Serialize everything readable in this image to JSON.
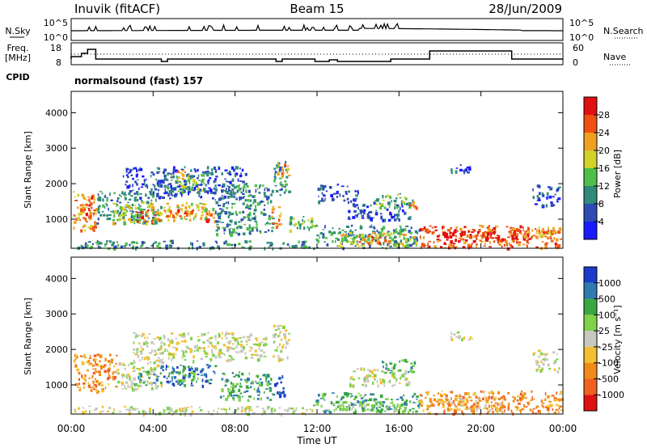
{
  "header": {
    "station": "Inuvik (fitACF)",
    "beam": "Beam 15",
    "date": "28/Jun/2009"
  },
  "noise_panel": {
    "left_label": "N.Sky",
    "left_ticks": [
      "10^5",
      "10^0"
    ],
    "right_label": "N.Search",
    "right_ticks": [
      "10^5",
      "10^0"
    ]
  },
  "freq_panel": {
    "left_label_1": "Freq.",
    "left_label_2": "[MHz]",
    "left_ticks": [
      "18",
      "8"
    ],
    "right_label": "Nave",
    "right_ticks": [
      "60",
      "0"
    ],
    "cpid_label": "CPID",
    "cpid_value": "normalsound (fast) 157"
  },
  "chart_data": [
    {
      "type": "heatmap",
      "name": "power",
      "ylabel": "Slant Range [km]",
      "y_ticks": [
        "1000",
        "2000",
        "3000",
        "4000"
      ],
      "y_tick_values": [
        1000,
        2000,
        3000,
        4000
      ],
      "ylim": [
        180,
        4600
      ],
      "xlim_hours": [
        0,
        24
      ],
      "colorbar_label": "Power [dB]",
      "colorbar_ticks": [
        "4",
        "8",
        "12",
        "16",
        "20",
        "24",
        "28"
      ],
      "colorbar_colors": [
        "#1a1aff",
        "#2e4bb4",
        "#2f8a7a",
        "#4fbf4a",
        "#d2d22a",
        "#f0a020",
        "#f05010",
        "#e01010"
      ],
      "regions": [
        {
          "t0": 0.1,
          "t1": 1.2,
          "r0": 700,
          "r1": 1800,
          "c": 5
        },
        {
          "t0": 0.4,
          "t1": 1.1,
          "r0": 1100,
          "r1": 1700,
          "c": 6
        },
        {
          "t0": 1.2,
          "t1": 4.4,
          "r0": 900,
          "r1": 1800,
          "c": 2
        },
        {
          "t0": 2.0,
          "t1": 4.0,
          "r0": 900,
          "r1": 1500,
          "c": 4
        },
        {
          "t0": 3.0,
          "t1": 4.3,
          "r0": 950,
          "r1": 1300,
          "c": 6
        },
        {
          "t0": 4.3,
          "t1": 7.0,
          "r0": 1000,
          "r1": 1500,
          "c": 4
        },
        {
          "t0": 4.5,
          "t1": 6.0,
          "r0": 1100,
          "r1": 1300,
          "c": 6
        },
        {
          "t0": 6.5,
          "t1": 7.1,
          "r0": 800,
          "r1": 1200,
          "c": 6
        },
        {
          "t0": 2.5,
          "t1": 8.5,
          "r0": 1600,
          "r1": 2500,
          "c": 1
        },
        {
          "t0": 4.5,
          "t1": 6.5,
          "r0": 1800,
          "r1": 2300,
          "c": 3
        },
        {
          "t0": 5.0,
          "t1": 5.6,
          "r0": 2100,
          "r1": 2400,
          "c": 5
        },
        {
          "t0": 7.0,
          "t1": 9.8,
          "r0": 600,
          "r1": 2000,
          "c": 2
        },
        {
          "t0": 9.8,
          "t1": 10.6,
          "r0": 1700,
          "r1": 2700,
          "c": 2
        },
        {
          "t0": 10.0,
          "t1": 10.6,
          "r0": 2200,
          "r1": 2600,
          "c": 5
        },
        {
          "t0": 9.7,
          "t1": 10.3,
          "r0": 800,
          "r1": 1400,
          "c": 5
        },
        {
          "t0": 10.6,
          "t1": 12.0,
          "r0": 700,
          "r1": 1100,
          "c": 3
        },
        {
          "t0": 0.1,
          "t1": 11.8,
          "r0": 200,
          "r1": 420,
          "c": 2
        },
        {
          "t0": 11.8,
          "t1": 17.0,
          "r0": 200,
          "r1": 850,
          "c": 2
        },
        {
          "t0": 13.0,
          "t1": 16.8,
          "r0": 250,
          "r1": 650,
          "c": 4
        },
        {
          "t0": 14.0,
          "t1": 15.5,
          "r0": 300,
          "r1": 550,
          "c": 6
        },
        {
          "t0": 13.5,
          "t1": 16.5,
          "r0": 1000,
          "r1": 1500,
          "c": 1
        },
        {
          "t0": 14.8,
          "t1": 16.7,
          "r0": 1350,
          "r1": 1750,
          "c": 3
        },
        {
          "t0": 16.5,
          "t1": 17.0,
          "r0": 1300,
          "r1": 1600,
          "c": 6
        },
        {
          "t0": 12.0,
          "t1": 14.0,
          "r0": 1500,
          "r1": 2000,
          "c": 1
        },
        {
          "t0": 17.0,
          "t1": 23.9,
          "r0": 200,
          "r1": 850,
          "c": 6
        },
        {
          "t0": 17.5,
          "t1": 22.5,
          "r0": 400,
          "r1": 700,
          "c": 7
        },
        {
          "t0": 21.5,
          "t1": 23.5,
          "r0": 500,
          "r1": 800,
          "c": 5
        },
        {
          "t0": 22.5,
          "t1": 23.8,
          "r0": 1400,
          "r1": 2000,
          "c": 1
        },
        {
          "t0": 18.5,
          "t1": 19.5,
          "r0": 2300,
          "r1": 2550,
          "c": 1
        }
      ]
    },
    {
      "type": "heatmap",
      "name": "velocity",
      "ylabel": "Slant Range [km]",
      "y_ticks": [
        "1000",
        "2000",
        "3000",
        "4000"
      ],
      "y_tick_values": [
        1000,
        2000,
        3000,
        4000
      ],
      "ylim": [
        180,
        4600
      ],
      "xlim_hours": [
        0,
        24
      ],
      "colorbar_label": "Velocity [m s⁻¹]",
      "colorbar_ticks": [
        "1000",
        "500",
        "100",
        "25",
        "-25",
        "-100",
        "-500",
        "-1000"
      ],
      "colorbar_colors": [
        "#1a3cc8",
        "#2f7ab0",
        "#3aa842",
        "#7ed24a",
        "#c8c8c0",
        "#f2c030",
        "#f08a18",
        "#f06020",
        "#e01010"
      ],
      "regions": [
        {
          "t0": 0.1,
          "t1": 2.2,
          "r0": 800,
          "r1": 1900,
          "c": 6
        },
        {
          "t0": 2.2,
          "t1": 4.4,
          "r0": 900,
          "r1": 1700,
          "c": 4
        },
        {
          "t0": 3.0,
          "t1": 4.2,
          "r0": 1000,
          "r1": 1400,
          "c": 2
        },
        {
          "t0": 4.3,
          "t1": 7.0,
          "r0": 1000,
          "r1": 1600,
          "c": 1
        },
        {
          "t0": 5.0,
          "t1": 6.2,
          "r0": 1100,
          "r1": 1400,
          "c": 2
        },
        {
          "t0": 3.0,
          "t1": 9.5,
          "r0": 1700,
          "r1": 2500,
          "c": 4
        },
        {
          "t0": 7.2,
          "t1": 9.8,
          "r0": 600,
          "r1": 1400,
          "c": 2
        },
        {
          "t0": 9.8,
          "t1": 10.4,
          "r0": 700,
          "r1": 1300,
          "c": 0
        },
        {
          "t0": 9.8,
          "t1": 10.6,
          "r0": 1700,
          "r1": 2700,
          "c": 4
        },
        {
          "t0": 11.8,
          "t1": 17.0,
          "r0": 250,
          "r1": 800,
          "c": 2
        },
        {
          "t0": 12.5,
          "t1": 16.0,
          "r0": 300,
          "r1": 550,
          "c": 3
        },
        {
          "t0": 13.5,
          "t1": 16.5,
          "r0": 1000,
          "r1": 1500,
          "c": 4
        },
        {
          "t0": 15.0,
          "t1": 16.8,
          "r0": 1350,
          "r1": 1750,
          "c": 2
        },
        {
          "t0": 17.0,
          "t1": 23.9,
          "r0": 200,
          "r1": 850,
          "c": 6
        },
        {
          "t0": 18.0,
          "t1": 21.0,
          "r0": 300,
          "r1": 700,
          "c": 5
        },
        {
          "t0": 22.5,
          "t1": 23.8,
          "r0": 1400,
          "r1": 2000,
          "c": 4
        },
        {
          "t0": 18.5,
          "t1": 19.5,
          "r0": 2300,
          "r1": 2550,
          "c": 4
        },
        {
          "t0": 0.1,
          "t1": 11.8,
          "r0": 200,
          "r1": 420,
          "c": 4
        }
      ]
    }
  ],
  "xaxis": {
    "ticks": [
      "00:00",
      "04:00",
      "08:00",
      "12:00",
      "16:00",
      "20:00",
      "00:00"
    ],
    "tick_hours": [
      0,
      4,
      8,
      12,
      16,
      20,
      24
    ],
    "label": "Time UT"
  }
}
